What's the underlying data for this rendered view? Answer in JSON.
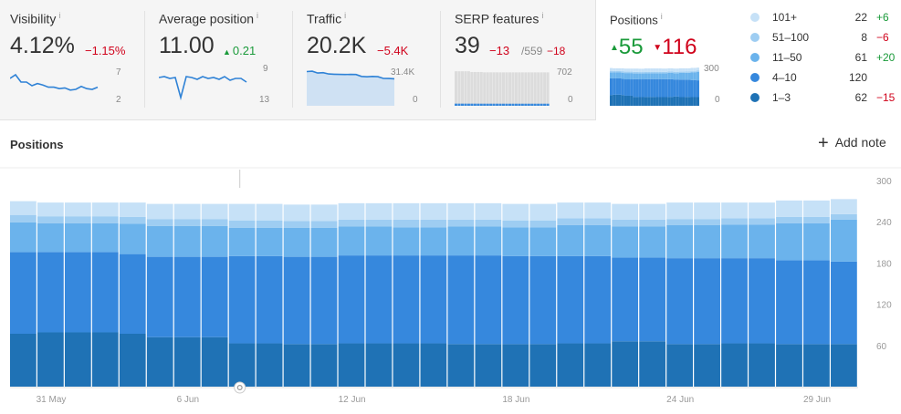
{
  "metrics": {
    "visibility": {
      "label": "Visibility",
      "info": "i",
      "value": "4.12%",
      "delta": "−1.15%",
      "axis_top": "7",
      "axis_bottom": "2",
      "spark": [
        5,
        5.5,
        4.5,
        4.5,
        4,
        4.3,
        4.1,
        3.8,
        3.8,
        3.6,
        3.7,
        3.4,
        3.5,
        3.9,
        3.6,
        3.5,
        3.8
      ]
    },
    "avg_position": {
      "label": "Average position",
      "info": "i",
      "value": "11.00",
      "delta": "0.21",
      "axis_top": "9",
      "axis_bottom": "13",
      "spark": [
        10.5,
        10.4,
        10.6,
        10.5,
        12.7,
        10.4,
        10.5,
        10.7,
        10.4,
        10.6,
        10.5,
        10.7,
        10.4,
        10.8,
        10.6,
        10.6,
        11.0
      ]
    },
    "traffic": {
      "label": "Traffic",
      "info": "i",
      "value": "20.2K",
      "delta": "−5.4K",
      "axis_top": "31.4K",
      "axis_bottom": "0",
      "spark": [
        25.6,
        25.9,
        24.5,
        24.8,
        23.8,
        23.6,
        23.5,
        23.4,
        23.5,
        23.4,
        22.0,
        21.7,
        22.0,
        21.8,
        20.5,
        20.4,
        20.2
      ]
    },
    "serp": {
      "label": "SERP features",
      "info": "i",
      "value": "39",
      "delta": "−13",
      "total": "/559",
      "total_delta": "−18",
      "axis_top": "702",
      "axis_bottom": "0",
      "spark_total": [
        577,
        577,
        577,
        577,
        577,
        565,
        565,
        565,
        565,
        560,
        560,
        560,
        560,
        560,
        559,
        559,
        559,
        559,
        559,
        559,
        559,
        559,
        559,
        559,
        559,
        559,
        559,
        559,
        559,
        559
      ],
      "spark_part": [
        52,
        52,
        50,
        50,
        48,
        47,
        47,
        46,
        45,
        44,
        43,
        42,
        42,
        42,
        41,
        41,
        40,
        40,
        40,
        40,
        40,
        40,
        39,
        39,
        39,
        39,
        39,
        39,
        39,
        39
      ]
    }
  },
  "positions_card": {
    "label": "Positions",
    "info": "i",
    "up": "55",
    "down": "116",
    "axis_top": "300",
    "axis_bottom": "0",
    "legend": [
      {
        "name": "101+",
        "value": "22",
        "change": "+6",
        "color": "#c6e1f7"
      },
      {
        "name": "51–100",
        "value": "8",
        "change": "−6",
        "color": "#9ecdf2"
      },
      {
        "name": "11–50",
        "value": "61",
        "change": "+20",
        "color": "#6bb3ec"
      },
      {
        "name": "4–10",
        "value": "120",
        "change": "",
        "color": "#3688dd"
      },
      {
        "name": "1–3",
        "value": "62",
        "change": "−15",
        "color": "#1f72b5"
      }
    ]
  },
  "section": {
    "title": "Positions",
    "add_note": "Add note"
  },
  "chart_data": {
    "type": "bar",
    "stacked": true,
    "ylim": [
      0,
      300
    ],
    "y_ticks": [
      "300",
      "240",
      "180",
      "120",
      "60"
    ],
    "x_tick_labels": [
      {
        "label": "31 May",
        "index": 1
      },
      {
        "label": "6 Jun",
        "index": 6
      },
      {
        "label": "12 Jun",
        "index": 12
      },
      {
        "label": "18 Jun",
        "index": 18
      },
      {
        "label": "24 Jun",
        "index": 24
      },
      {
        "label": "29 Jun",
        "index": 29
      }
    ],
    "categories": [
      "30 May",
      "31 May",
      "1 Jun",
      "2 Jun",
      "3 Jun",
      "4 Jun",
      "5 Jun",
      "6 Jun",
      "7 Jun",
      "8 Jun",
      "9 Jun",
      "10 Jun",
      "11 Jun",
      "12 Jun",
      "13 Jun",
      "14 Jun",
      "15 Jun",
      "16 Jun",
      "17 Jun",
      "18 Jun",
      "19 Jun",
      "20 Jun",
      "21 Jun",
      "22 Jun",
      "23 Jun",
      "24 Jun",
      "25 Jun",
      "26 Jun",
      "27 Jun",
      "28 Jun",
      "29 Jun"
    ],
    "series": [
      {
        "name": "1–3",
        "color": "#1f72b5",
        "values": [
          77,
          79,
          79,
          79,
          77,
          72,
          72,
          72,
          63,
          63,
          62,
          62,
          63,
          63,
          63,
          63,
          62,
          62,
          62,
          62,
          63,
          63,
          66,
          66,
          62,
          62,
          63,
          63,
          62,
          62,
          62
        ]
      },
      {
        "name": "4–10",
        "color": "#3688dd",
        "values": [
          119,
          117,
          117,
          117,
          116,
          117,
          117,
          117,
          127,
          127,
          127,
          127,
          128,
          128,
          128,
          128,
          129,
          129,
          128,
          128,
          127,
          127,
          122,
          122,
          125,
          125,
          124,
          124,
          122,
          122,
          120
        ]
      },
      {
        "name": "11–50",
        "color": "#6bb3ec",
        "values": [
          43,
          42,
          42,
          42,
          44,
          45,
          45,
          45,
          41,
          41,
          42,
          42,
          42,
          42,
          41,
          41,
          42,
          42,
          42,
          42,
          45,
          45,
          45,
          45,
          48,
          48,
          49,
          49,
          54,
          54,
          61
        ]
      },
      {
        "name": "51–100",
        "color": "#9ecdf2",
        "values": [
          11,
          10,
          10,
          10,
          10,
          10,
          10,
          10,
          11,
          11,
          10,
          10,
          10,
          10,
          11,
          11,
          10,
          10,
          10,
          10,
          10,
          10,
          10,
          10,
          9,
          9,
          9,
          9,
          9,
          9,
          8
        ]
      },
      {
        "name": "101+",
        "color": "#c6e1f7",
        "values": [
          20,
          20,
          20,
          20,
          21,
          22,
          22,
          22,
          24,
          24,
          24,
          24,
          24,
          24,
          24,
          24,
          24,
          24,
          24,
          24,
          23,
          23,
          23,
          23,
          24,
          24,
          23,
          23,
          24,
          24,
          22
        ]
      }
    ]
  }
}
